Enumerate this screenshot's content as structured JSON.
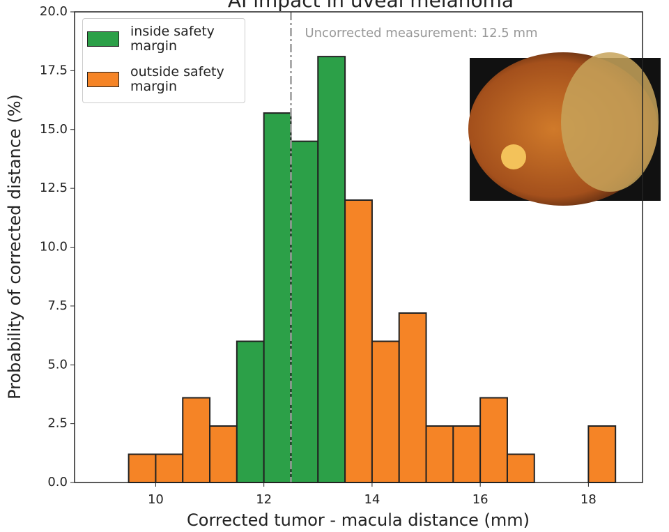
{
  "chart_data": {
    "type": "histogram",
    "title": "AI impact in uveal melanoma",
    "xlabel": "Corrected tumor - macula distance (mm)",
    "ylabel": "Probability of corrected distance (%)",
    "bins": [
      9.0,
      9.5,
      10.0,
      10.5,
      11.0,
      11.5,
      12.0,
      12.5,
      13.0,
      13.5,
      14.0,
      14.5,
      15.0,
      15.5,
      16.0,
      16.5,
      17.0,
      17.5,
      18.0,
      18.5,
      19.0
    ],
    "values": [
      0,
      1.2,
      1.2,
      3.6,
      2.4,
      6.0,
      15.7,
      14.5,
      18.1,
      12.0,
      6.0,
      7.2,
      2.4,
      2.4,
      3.6,
      1.2,
      0,
      0,
      2.4,
      0
    ],
    "bar_colors": [
      "#f58426",
      "#f58426",
      "#f58426",
      "#f58426",
      "#f58426",
      "#2ca048",
      "#2ca048",
      "#2ca048",
      "#2ca048",
      "#f58426",
      "#f58426",
      "#f58426",
      "#f58426",
      "#f58426",
      "#f58426",
      "#f58426",
      "#f58426",
      "#f58426",
      "#f58426",
      "#f58426"
    ],
    "legend": [
      {
        "name": "inside safety margin",
        "color": "#2ca048"
      },
      {
        "name": "outside safety margin",
        "color": "#f58426"
      }
    ],
    "vline": {
      "x": 12.5,
      "color": "#999999",
      "label": "Uncorrected measurement: 12.5 mm"
    },
    "xlim": [
      8.5,
      19.0
    ],
    "ylim": [
      0,
      20
    ],
    "xticks": [
      10,
      12,
      14,
      16,
      18
    ],
    "yticks": [
      {
        "value": 0,
        "label": "0.0"
      },
      {
        "value": 2.5,
        "label": "2.5"
      },
      {
        "value": 5,
        "label": "5.0"
      },
      {
        "value": 7.5,
        "label": "7.5"
      },
      {
        "value": 10,
        "label": "10.0"
      },
      {
        "value": 12.5,
        "label": "12.5"
      },
      {
        "value": 15,
        "label": "15.0"
      },
      {
        "value": 17.5,
        "label": "17.5"
      },
      {
        "value": 20,
        "label": "20.0"
      }
    ]
  }
}
